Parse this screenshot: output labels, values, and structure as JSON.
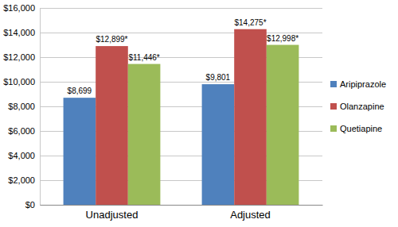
{
  "chart_data": {
    "type": "bar",
    "categories": [
      "Unadjusted",
      "Adjusted"
    ],
    "series": [
      {
        "name": "Aripiprazole",
        "color": "#4f81bd",
        "values": [
          8699,
          9801
        ],
        "value_labels": [
          "$8,699",
          "$9,801"
        ]
      },
      {
        "name": "Olanzapine",
        "color": "#c0504d",
        "values": [
          12899,
          14275
        ],
        "value_labels": [
          "$12,899*",
          "$14,275*"
        ]
      },
      {
        "name": "Quetiapine",
        "color": "#9bbb59",
        "values": [
          11446,
          12998
        ],
        "value_labels": [
          "$11,446*",
          "$12,998*"
        ]
      }
    ],
    "ylim": [
      0,
      16000
    ],
    "yticks": [
      {
        "value": 0,
        "label": "$0"
      },
      {
        "value": 2000,
        "label": "$2,000"
      },
      {
        "value": 4000,
        "label": "$4,000"
      },
      {
        "value": 6000,
        "label": "$6,000"
      },
      {
        "value": 8000,
        "label": "$8,000"
      },
      {
        "value": 10000,
        "label": "$10,000"
      },
      {
        "value": 12000,
        "label": "$12,000"
      },
      {
        "value": 14000,
        "label": "$14,000"
      },
      {
        "value": 16000,
        "label": "$16,000"
      }
    ],
    "grid": true,
    "legend": "right",
    "data_labels": true
  }
}
